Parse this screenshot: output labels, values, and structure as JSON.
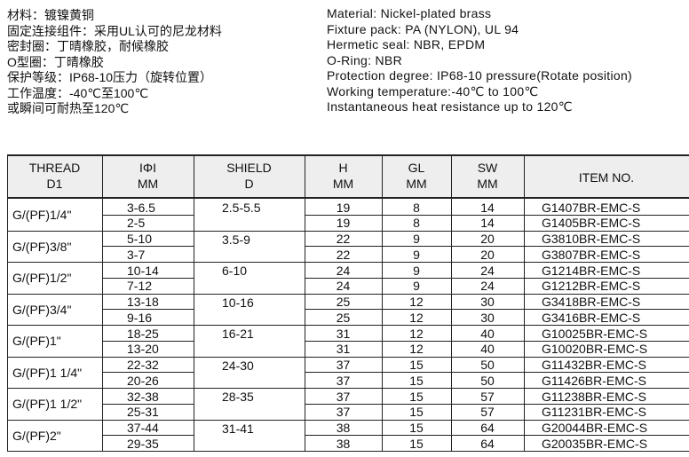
{
  "spec_cn": [
    "材料：镀镍黄铜",
    "固定连接组件：采用UL认可的尼龙材料",
    "密封圈：丁晴橡胶，耐候橡胶",
    "O型圈：丁晴橡胶",
    "保护等级：IP68-10压力（旋转位置）",
    "工作温度：-40℃至100℃",
    "或瞬间可耐热至120℃"
  ],
  "spec_en": [
    "Material: Nickel-plated brass",
    "Fixture pack: PA (NYLON), UL 94",
    "Hermetic seal: NBR, EPDM",
    "O-Ring: NBR",
    "Protection degree: IP68-10 pressure(Rotate position)",
    "Working temperature:-40℃ to 100℃",
    "Instantaneous heat resistance up to 120℃"
  ],
  "table": {
    "header": [
      [
        "THREAD",
        "D1"
      ],
      [
        "ΙΦΙ",
        "MM"
      ],
      [
        "SHIELD",
        "D"
      ],
      [
        "H",
        "MM"
      ],
      [
        "GL",
        "MM"
      ],
      [
        "SW",
        "MM"
      ],
      [
        "ITEM NO."
      ]
    ],
    "groups": [
      {
        "thread": "G/(PF)1/4\"",
        "shield": "2.5-5.5",
        "rows": [
          [
            "3-6.5",
            19,
            8,
            14,
            "G1407BR-EMC-S"
          ],
          [
            "2-5",
            19,
            8,
            14,
            "G1405BR-EMC-S"
          ]
        ]
      },
      {
        "thread": "G/(PF)3/8\"",
        "shield": "3.5-9",
        "rows": [
          [
            "5-10",
            22,
            9,
            20,
            "G3810BR-EMC-S"
          ],
          [
            "3-7",
            22,
            9,
            20,
            "G3807BR-EMC-S"
          ]
        ]
      },
      {
        "thread": "G/(PF)1/2\"",
        "shield": "6-10",
        "rows": [
          [
            "10-14",
            24,
            9,
            24,
            "G1214BR-EMC-S"
          ],
          [
            "7-12",
            24,
            9,
            24,
            "G1212BR-EMC-S"
          ]
        ]
      },
      {
        "thread": "G/(PF)3/4\"",
        "shield": "10-16",
        "rows": [
          [
            "13-18",
            25,
            12,
            30,
            "G3418BR-EMC-S"
          ],
          [
            "9-16",
            25,
            12,
            30,
            "G3416BR-EMC-S"
          ]
        ]
      },
      {
        "thread": "G/(PF)1\"",
        "shield": "16-21",
        "rows": [
          [
            "18-25",
            31,
            12,
            40,
            "G10025BR-EMC-S"
          ],
          [
            "13-20",
            31,
            12,
            40,
            "G10020BR-EMC-S"
          ]
        ]
      },
      {
        "thread": "G/(PF)1 1/4\"",
        "shield": "24-30",
        "rows": [
          [
            "22-32",
            37,
            15,
            50,
            "G11432BR-EMC-S"
          ],
          [
            "20-26",
            37,
            15,
            50,
            "G11426BR-EMC-S"
          ]
        ]
      },
      {
        "thread": "G/(PF)1 1/2\"",
        "shield": "28-35",
        "rows": [
          [
            "32-38",
            37,
            15,
            57,
            "G11238BR-EMC-S"
          ],
          [
            "25-31",
            37,
            15,
            57,
            "G11231BR-EMC-S"
          ]
        ]
      },
      {
        "thread": "G/(PF)2\"",
        "shield": "31-41",
        "rows": [
          [
            "37-44",
            38,
            15,
            64,
            "G20044BR-EMC-S"
          ],
          [
            "29-35",
            38,
            15,
            64,
            "G20035BR-EMC-S"
          ]
        ]
      }
    ]
  }
}
